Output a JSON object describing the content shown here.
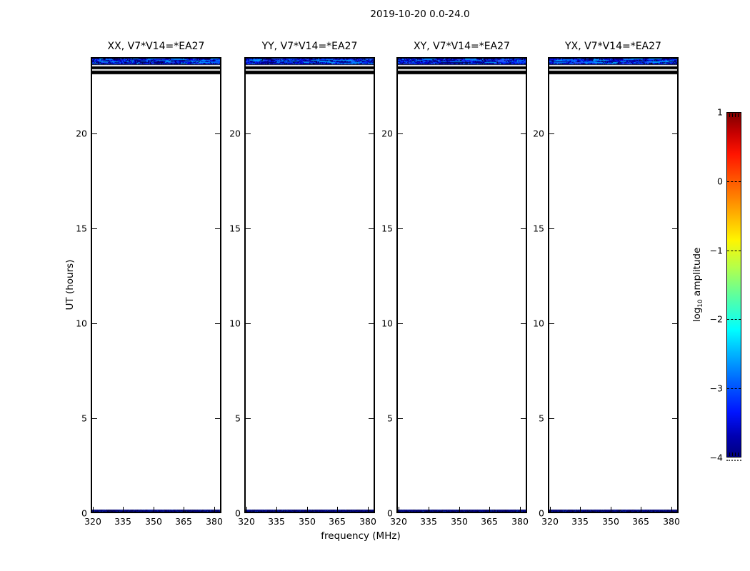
{
  "figure": {
    "background": "#ffffff"
  },
  "chart_data": {
    "type": "heatmap",
    "title": "2019-10-20 0.0-24.0",
    "xlabel": "frequency (MHz)",
    "ylabel": "UT (hours)",
    "x_ticks": [
      320,
      335,
      350,
      365,
      380
    ],
    "y_ticks": [
      0,
      5,
      10,
      15,
      20
    ],
    "xlim": [
      319.7,
      383.0
    ],
    "ylim": [
      0,
      24
    ],
    "grid": false,
    "colormap": "jet",
    "panels": [
      {
        "title": "XX, V7*V14=*EA27"
      },
      {
        "title": "YY, V7*V14=*EA27"
      },
      {
        "title": "XY, V7*V14=*EA27"
      },
      {
        "title": "YX, V7*V14=*EA27"
      }
    ],
    "features": [
      {
        "name": "speckle-band",
        "description": "speckled blue emission band near UT 24, log10 amplitude ~ -2.5 to -4, spans all frequencies, all panels",
        "ut_range": [
          23.62,
          24.0
        ],
        "render": "speckle",
        "palette": [
          [
            "#0000dd",
            20
          ],
          [
            "#0013ff",
            18
          ],
          [
            "#0000a6",
            15
          ],
          [
            "#00007f",
            10
          ],
          [
            "#1f3bff",
            9
          ],
          [
            "#0057ff",
            7
          ],
          [
            "#0090ff",
            4
          ],
          [
            "#00c8ff",
            2
          ],
          [
            "#000050",
            8
          ],
          [
            "#04060c",
            7
          ]
        ],
        "streaks": {
          "count": 80,
          "colors": [
            "#0048ff",
            "#0080ff",
            "#00a8ff",
            "#2255ff",
            "#000090",
            "#000060"
          ]
        }
      },
      {
        "name": "band-dark-edge",
        "description": "dark lower edge of the speckle band",
        "ut_range": [
          23.6,
          23.64
        ],
        "render": "solid",
        "color": "#000a26"
      },
      {
        "name": "black-row-a",
        "description": "solid dark row across all frequencies near UT 23.45",
        "ut_range": [
          23.38,
          23.52
        ],
        "render": "solid",
        "color": "#000000"
      },
      {
        "name": "black-row-b",
        "description": "solid dark row across all frequencies near UT 23.2",
        "ut_range": [
          23.1,
          23.3
        ],
        "render": "solid",
        "color": "#000000"
      },
      {
        "name": "navy-bottom-row",
        "description": "dark navy speckled row at UT 0, log10 amplitude ~ -4",
        "ut_range": [
          0.0,
          0.17
        ],
        "render": "speckle",
        "palette": [
          [
            "#000066",
            30
          ],
          [
            "#000080",
            25
          ],
          [
            "#00008f",
            15
          ],
          [
            "#001899",
            10
          ],
          [
            "#000040",
            12
          ],
          [
            "#0030b0",
            5
          ],
          [
            "#0b0b20",
            3
          ]
        ]
      }
    ],
    "colorbar": {
      "label": "log10 amplitude",
      "label_parts": {
        "prefix": "log",
        "sub": "10",
        "rest": " amplitude"
      },
      "orientation": "vertical",
      "vmax": 1,
      "vmin": -4,
      "ticks": [
        1,
        0,
        -1,
        -2,
        -3,
        -4
      ]
    }
  }
}
